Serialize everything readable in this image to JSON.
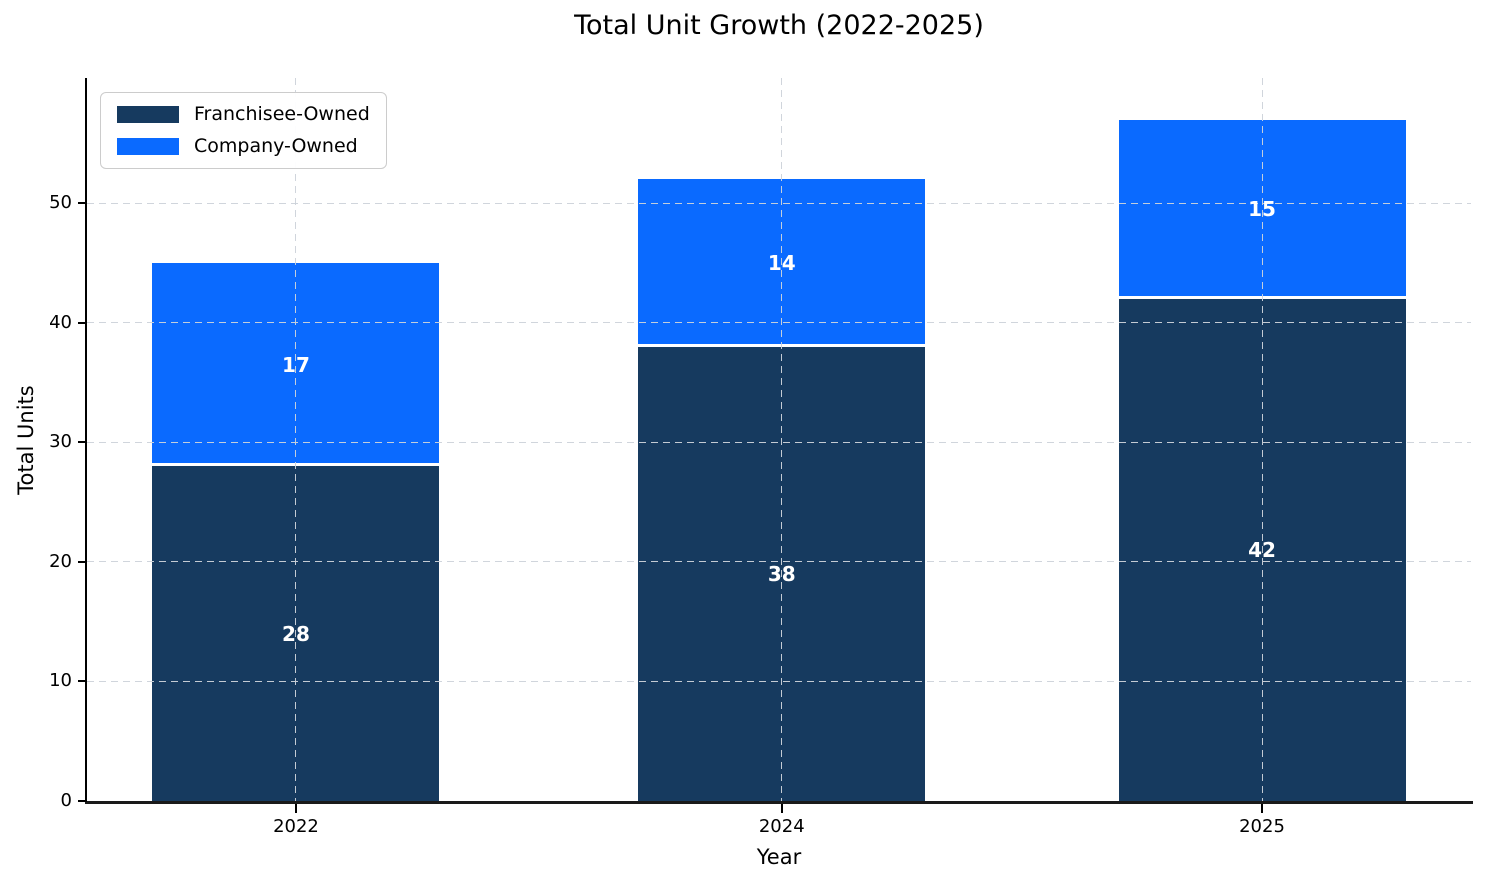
{
  "title": "Total Unit Growth (2022-2025)",
  "chart_data": {
    "type": "bar",
    "stacked": true,
    "title": "Total Unit Growth (2022-2025)",
    "xlabel": "Year",
    "ylabel": "Total Units",
    "categories": [
      "2022",
      "2024",
      "2025"
    ],
    "series": [
      {
        "name": "Franchisee-Owned",
        "color": "#163a5f",
        "values": [
          28,
          38,
          42
        ]
      },
      {
        "name": "Company-Owned",
        "color": "#0a6aff",
        "values": [
          17,
          14,
          15
        ]
      }
    ],
    "totals": [
      45,
      52,
      57
    ],
    "yticks": [
      0,
      10,
      20,
      30,
      40,
      50
    ],
    "ylim": [
      0,
      60.47
    ],
    "grid": true,
    "grid_style": "dashed",
    "legend_position": "upper left",
    "value_label_color": "#ffffff",
    "segment_separator_color": "#ffffff",
    "axis_color": "#000000",
    "background_color": "#ffffff"
  }
}
